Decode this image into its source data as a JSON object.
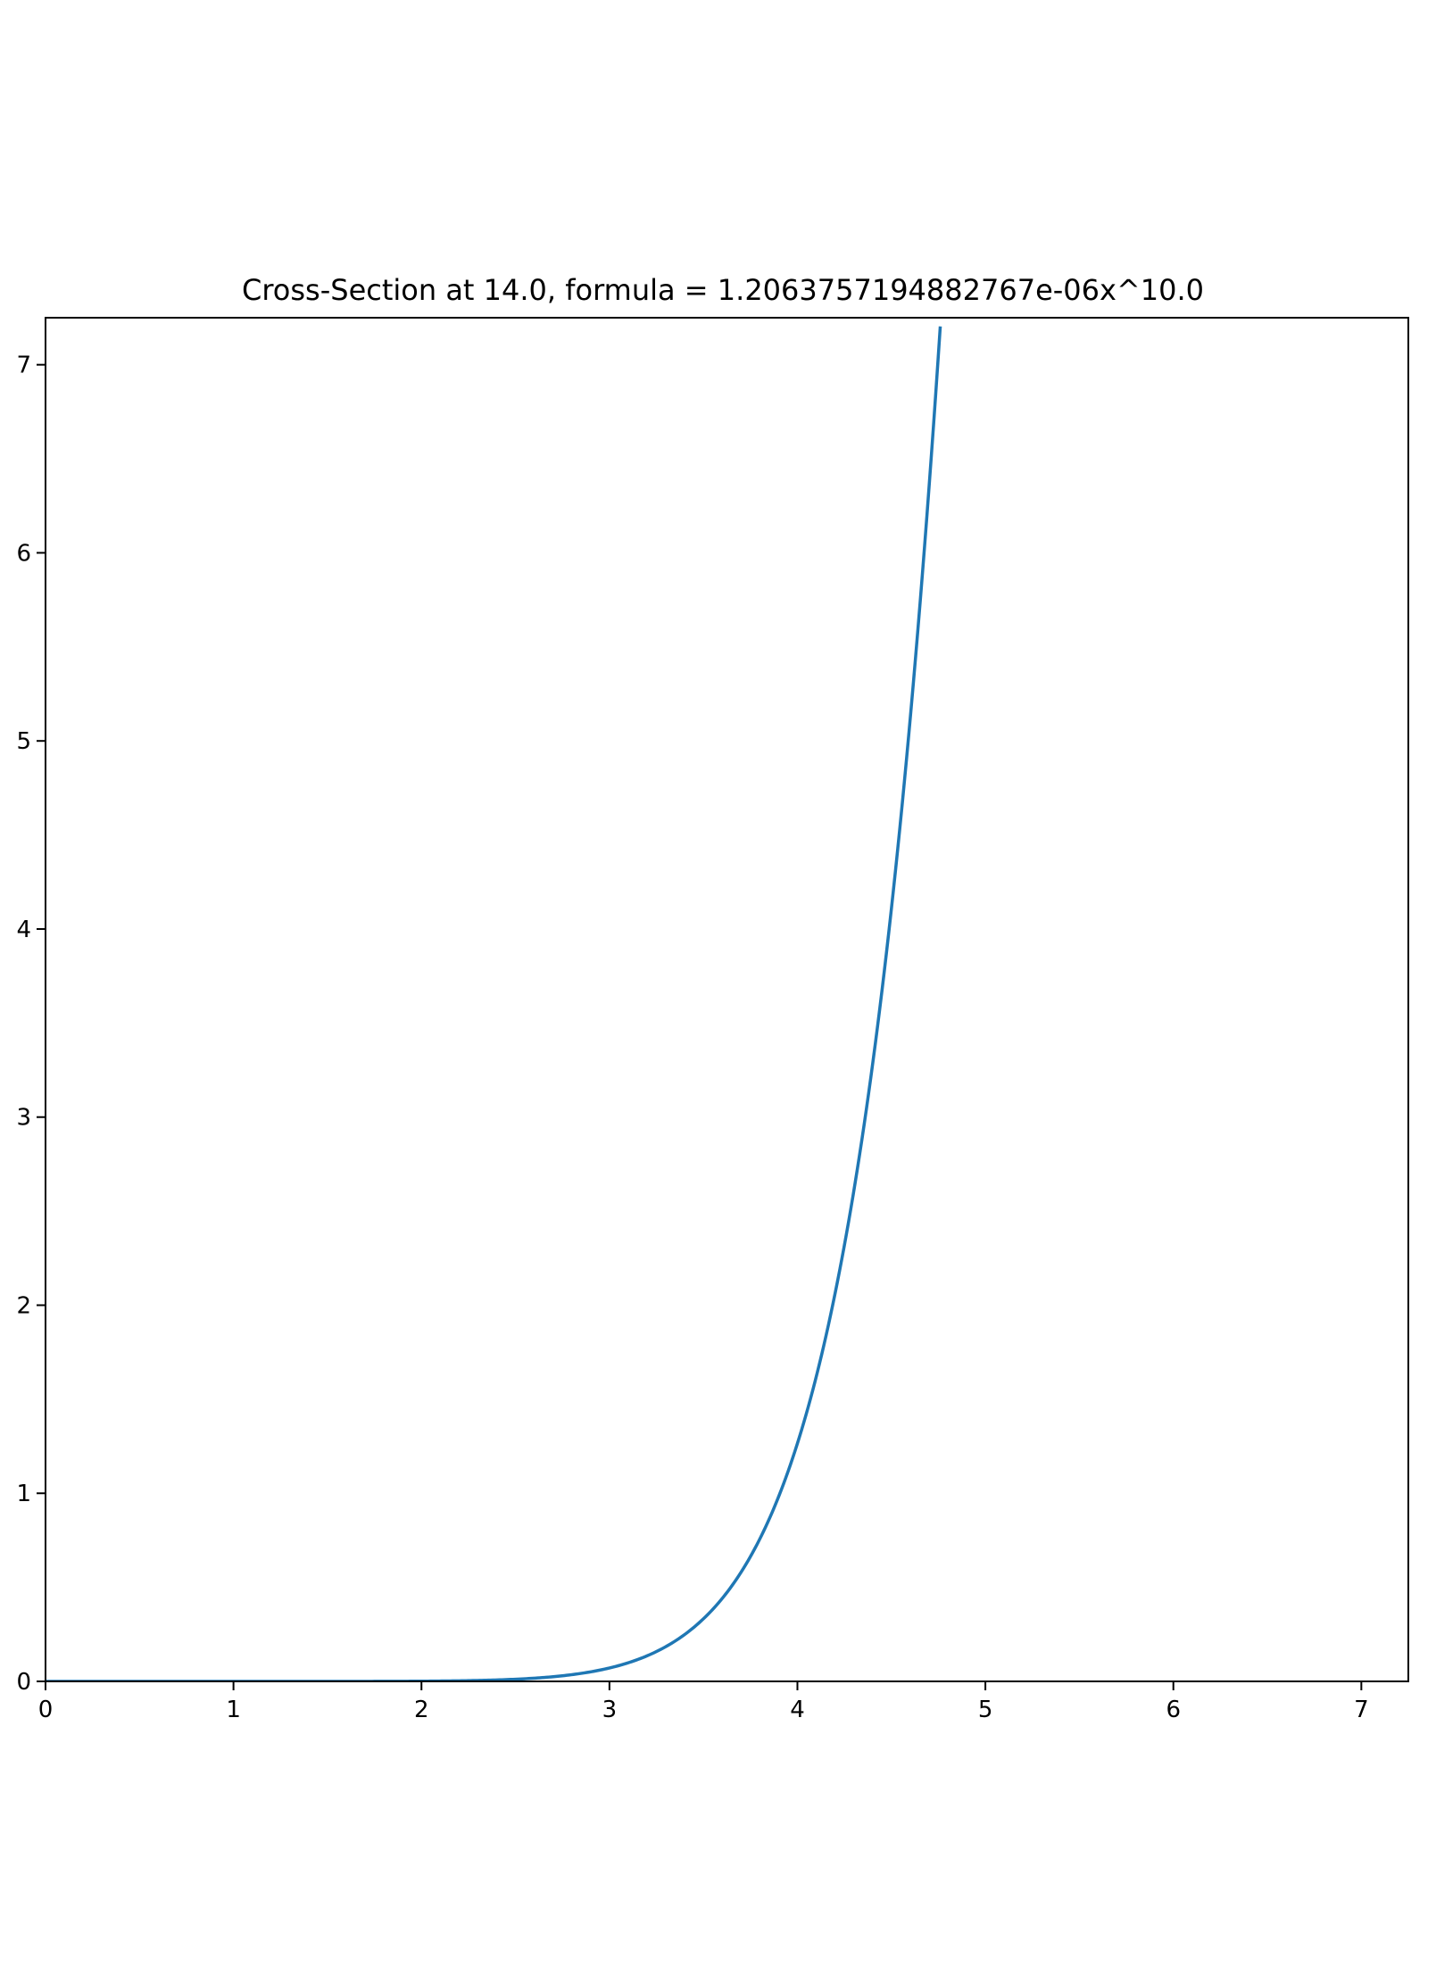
{
  "chart_data": {
    "type": "line",
    "title": "Cross-Section at 14.0, formula = 1.2063757194882767e-06x^10.0",
    "xlabel": "",
    "ylabel": "",
    "xlim": [
      0,
      7.25
    ],
    "ylim": [
      0,
      7.25
    ],
    "xticks": [
      0,
      1,
      2,
      3,
      4,
      5,
      6,
      7
    ],
    "yticks": [
      0,
      1,
      2,
      3,
      4,
      5,
      6,
      7
    ],
    "xtick_labels": [
      "0",
      "1",
      "2",
      "3",
      "4",
      "5",
      "6",
      "7"
    ],
    "ytick_labels": [
      "0",
      "1",
      "2",
      "3",
      "4",
      "5",
      "6",
      "7"
    ],
    "grid": false,
    "legend": "none",
    "series": [
      {
        "color": "#1f77b4",
        "formula": {
          "coefficient": 1.2063757194882767e-06,
          "exponent": 10.0
        },
        "x": [
          0,
          1,
          2,
          2.5,
          3,
          3.25,
          3.5,
          3.75,
          4,
          4.25,
          4.5,
          4.6,
          4.7,
          4.76
        ],
        "y": [
          0,
          1.2e-06,
          0.00124,
          0.0115,
          0.0712,
          0.158,
          0.331,
          0.665,
          1.265,
          2.317,
          4.083,
          5.09,
          6.3,
          7.09
        ]
      }
    ]
  }
}
